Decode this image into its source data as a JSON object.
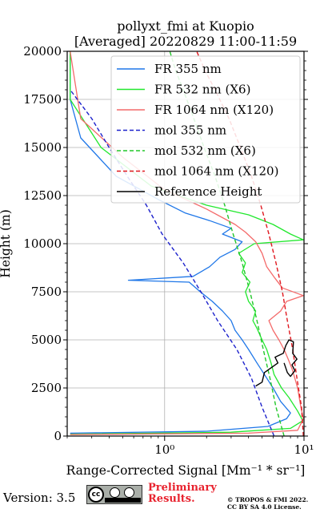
{
  "chart_data": {
    "type": "line",
    "title_line1": "pollyxt_fmi at Kuopio",
    "title_line2": "[Averaged] 20220829 11:00-11:59",
    "xlabel": "Range-Corrected Signal [Mm⁻¹ * sr⁻¹]",
    "ylabel": "Height (m)",
    "xscale": "log",
    "xlim": [
      0.2,
      10
    ],
    "ylim": [
      0,
      20000
    ],
    "x_ticks": [
      {
        "value": 1,
        "label": "10⁰"
      },
      {
        "value": 10,
        "label": "10¹"
      }
    ],
    "y_ticks": [
      0,
      2500,
      5000,
      7500,
      10000,
      12500,
      15000,
      17500,
      20000
    ],
    "grid": true,
    "legend_position": "top-right",
    "series": [
      {
        "name": "FR 355 nm",
        "color": "#1f77e8",
        "style": "solid",
        "kind": "signal",
        "points": [
          [
            0.21,
            150
          ],
          [
            2.0,
            250
          ],
          [
            5.5,
            500
          ],
          [
            7.5,
            900
          ],
          [
            8.0,
            1200
          ],
          [
            6.8,
            1800
          ],
          [
            6.0,
            2500
          ],
          [
            5.2,
            3200
          ],
          [
            4.6,
            3800
          ],
          [
            4.0,
            4500
          ],
          [
            3.6,
            5000
          ],
          [
            3.2,
            5500
          ],
          [
            3.0,
            6000
          ],
          [
            2.6,
            6500
          ],
          [
            2.2,
            7000
          ],
          [
            1.8,
            7500
          ],
          [
            1.5,
            8000
          ],
          [
            0.55,
            8100
          ],
          [
            1.6,
            8300
          ],
          [
            2.1,
            8800
          ],
          [
            2.5,
            9300
          ],
          [
            3.2,
            9700
          ],
          [
            3.6,
            10100
          ],
          [
            2.6,
            10500
          ],
          [
            3.0,
            10800
          ],
          [
            2.1,
            11200
          ],
          [
            1.4,
            11600
          ],
          [
            0.9,
            12300
          ],
          [
            0.45,
            13500
          ],
          [
            0.25,
            15500
          ],
          [
            0.21,
            17500
          ],
          [
            0.21,
            20000
          ]
        ]
      },
      {
        "name": "FR 532 nm (X6)",
        "color": "#22e82e",
        "style": "solid",
        "kind": "signal",
        "points": [
          [
            0.21,
            100
          ],
          [
            3.0,
            200
          ],
          [
            8.0,
            400
          ],
          [
            9.8,
            800
          ],
          [
            9.0,
            1300
          ],
          [
            7.8,
            2000
          ],
          [
            6.9,
            2500
          ],
          [
            6.1,
            3200
          ],
          [
            5.8,
            3800
          ],
          [
            5.4,
            4500
          ],
          [
            5.0,
            5000
          ],
          [
            4.6,
            5600
          ],
          [
            4.3,
            6000
          ],
          [
            4.5,
            6500
          ],
          [
            4.0,
            7000
          ],
          [
            3.8,
            7500
          ],
          [
            4.1,
            8000
          ],
          [
            3.6,
            8500
          ],
          [
            3.8,
            9000
          ],
          [
            3.4,
            9500
          ],
          [
            4.4,
            10000
          ],
          [
            9.9,
            10200
          ],
          [
            8.0,
            10500
          ],
          [
            6.0,
            11000
          ],
          [
            4.0,
            11500
          ],
          [
            2.0,
            12000
          ],
          [
            0.8,
            13000
          ],
          [
            0.35,
            15000
          ],
          [
            0.21,
            17500
          ],
          [
            0.21,
            20000
          ]
        ]
      },
      {
        "name": "FR 1064 nm (X120)",
        "color": "#f46a6a",
        "style": "solid",
        "kind": "signal",
        "points": [
          [
            0.21,
            80
          ],
          [
            4.0,
            150
          ],
          [
            9.0,
            300
          ],
          [
            9.9,
            900
          ],
          [
            9.5,
            1500
          ],
          [
            9.0,
            2500
          ],
          [
            8.6,
            3000
          ],
          [
            8.2,
            3500
          ],
          [
            7.7,
            4000
          ],
          [
            7.2,
            4500
          ],
          [
            6.6,
            5000
          ],
          [
            6.0,
            5500
          ],
          [
            5.6,
            6000
          ],
          [
            6.8,
            6500
          ],
          [
            7.5,
            7000
          ],
          [
            9.9,
            7300
          ],
          [
            7.0,
            7700
          ],
          [
            6.2,
            8200
          ],
          [
            5.4,
            8800
          ],
          [
            5.0,
            9500
          ],
          [
            4.5,
            10100
          ],
          [
            3.8,
            10600
          ],
          [
            3.2,
            11000
          ],
          [
            2.0,
            11800
          ],
          [
            1.0,
            12800
          ],
          [
            0.5,
            14500
          ],
          [
            0.25,
            16500
          ],
          [
            0.21,
            20000
          ]
        ]
      },
      {
        "name": "mol 355 nm",
        "color": "#1d22cc",
        "style": "dashed",
        "kind": "molecular",
        "points": [
          [
            6.1,
            0
          ],
          [
            5.0,
            1500
          ],
          [
            4.2,
            3000
          ],
          [
            3.3,
            4500
          ],
          [
            2.4,
            6000
          ],
          [
            1.82,
            7500
          ],
          [
            1.36,
            9000
          ],
          [
            0.96,
            10500
          ],
          [
            0.74,
            12000
          ],
          [
            0.54,
            13500
          ],
          [
            0.4,
            15000
          ],
          [
            0.3,
            16500
          ],
          [
            0.21,
            18000
          ]
        ]
      },
      {
        "name": "mol 532 nm (X6)",
        "color": "#22c72a",
        "style": "dashed",
        "kind": "molecular",
        "points": [
          [
            7.2,
            0
          ],
          [
            6.3,
            1500
          ],
          [
            5.7,
            3000
          ],
          [
            5.1,
            4500
          ],
          [
            4.6,
            6000
          ],
          [
            4.1,
            7500
          ],
          [
            3.6,
            9000
          ],
          [
            3.1,
            10500
          ],
          [
            2.7,
            12000
          ],
          [
            2.3,
            13500
          ],
          [
            1.92,
            15000
          ],
          [
            1.62,
            16500
          ],
          [
            1.36,
            18000
          ],
          [
            1.2,
            19000
          ],
          [
            1.09,
            20000
          ]
        ]
      },
      {
        "name": "mol 1064 nm (X120)",
        "color": "#e0181f",
        "style": "dashed",
        "kind": "molecular",
        "points": [
          [
            9.9,
            0
          ],
          [
            9.6,
            1500
          ],
          [
            8.9,
            3000
          ],
          [
            8.3,
            4500
          ],
          [
            7.6,
            6000
          ],
          [
            7.0,
            7500
          ],
          [
            6.3,
            9000
          ],
          [
            5.6,
            10500
          ],
          [
            4.9,
            12000
          ],
          [
            4.2,
            13500
          ],
          [
            3.5,
            15000
          ],
          [
            2.9,
            16500
          ],
          [
            2.3,
            18000
          ],
          [
            1.95,
            19000
          ],
          [
            1.7,
            20000
          ]
        ]
      },
      {
        "name": "Reference Height",
        "color": "#000000",
        "style": "solid",
        "kind": "reference",
        "points": [
          [
            4.5,
            2600
          ],
          [
            5.0,
            2800
          ],
          [
            5.2,
            3300
          ],
          [
            6.5,
            3800
          ],
          [
            6.2,
            4100
          ],
          [
            7.1,
            4300
          ],
          [
            7.4,
            4700
          ],
          [
            7.8,
            5000
          ],
          [
            8.4,
            4900
          ],
          [
            8.3,
            4300
          ],
          [
            8.9,
            4000
          ],
          [
            8.2,
            3700
          ],
          [
            8.6,
            3400
          ],
          [
            8.0,
            3100
          ],
          [
            7.6,
            3300
          ],
          [
            7.2,
            3800
          ]
        ]
      }
    ]
  },
  "footer": {
    "version": "Version: 3.5",
    "cc_label": "cc",
    "cc_by": "BY",
    "cc_sa": "SA",
    "prelim_line1": "Preliminary",
    "prelim_line2": "Results.",
    "copyright_line1": "© TROPOS & FMI 2022.",
    "copyright_line2": "CC BY SA 4.0 License."
  }
}
